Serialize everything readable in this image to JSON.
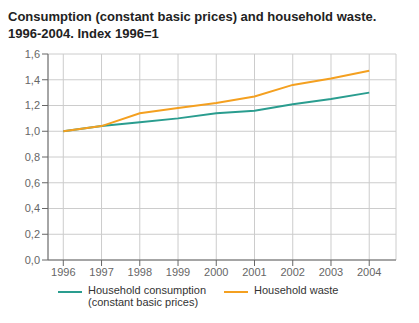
{
  "chart_data": {
    "type": "line",
    "title": "Consumption (constant basic prices) and household waste.",
    "subtitle": "1996-2004. Index 1996=1",
    "x": [
      1996,
      1997,
      1998,
      1999,
      2000,
      2001,
      2002,
      2003,
      2004
    ],
    "series": [
      {
        "name": "Household consumption\n(constant basic prices)",
        "color": "#2a9d8f",
        "values": [
          1.0,
          1.04,
          1.07,
          1.1,
          1.14,
          1.16,
          1.21,
          1.25,
          1.3
        ]
      },
      {
        "name": "Household waste",
        "color": "#f4a020",
        "values": [
          1.0,
          1.04,
          1.14,
          1.18,
          1.22,
          1.27,
          1.36,
          1.41,
          1.47
        ]
      }
    ],
    "xlim": [
      1995.6,
      2004.7
    ],
    "xticks": [
      1996,
      1997,
      1998,
      1999,
      2000,
      2001,
      2002,
      2003,
      2004
    ],
    "ylim": [
      0.0,
      1.6
    ],
    "yticks": [
      {
        "value": 0.0,
        "label": "0,0"
      },
      {
        "value": 0.2,
        "label": "0,2"
      },
      {
        "value": 0.4,
        "label": "0,4"
      },
      {
        "value": 0.6,
        "label": "0,6"
      },
      {
        "value": 0.8,
        "label": "0,8"
      },
      {
        "value": 1.0,
        "label": "1,0"
      },
      {
        "value": 1.2,
        "label": "1,2"
      },
      {
        "value": 1.4,
        "label": "1,4"
      },
      {
        "value": 1.6,
        "label": "1,6"
      }
    ],
    "grid": true,
    "legend": "bottom"
  }
}
